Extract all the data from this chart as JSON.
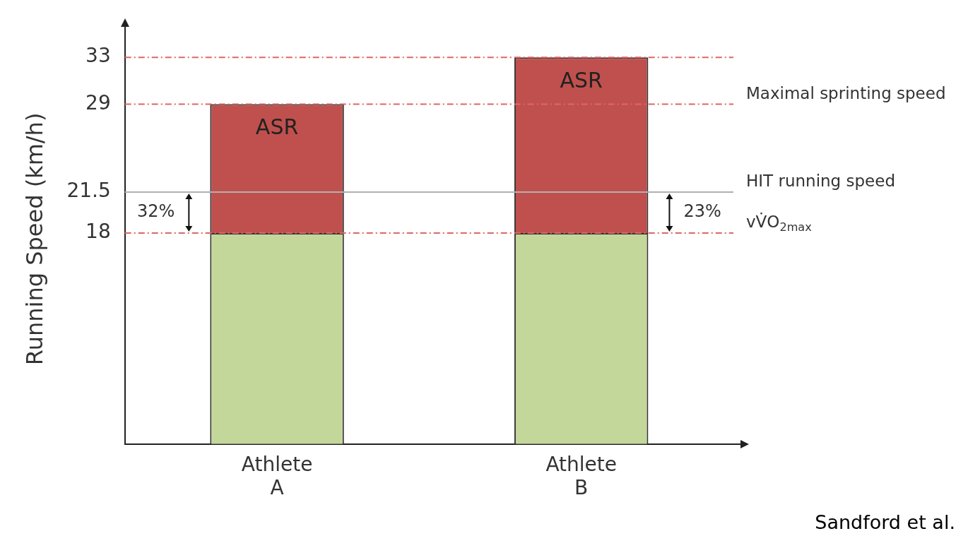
{
  "chart_data": {
    "type": "bar",
    "stacked": true,
    "ylabel": "Running Speed (km/h)",
    "categories": [
      "Athlete A",
      "Athlete B"
    ],
    "series": [
      {
        "color": "#c4d79b",
        "values": [
          18,
          18
        ]
      },
      {
        "name": "ASR",
        "color": "#c0504d",
        "values": [
          11,
          15
        ]
      }
    ],
    "ylim": [
      0,
      35
    ],
    "yticks": [
      18,
      21.5,
      29,
      33
    ],
    "grid": false,
    "legend": false,
    "ref_lines": [
      {
        "axis": "y",
        "value": 33,
        "color": "#e06666",
        "line_style": "dashed"
      },
      {
        "axis": "y",
        "value": 29,
        "label": "Maximal sprinting speed",
        "color": "#e06666",
        "line_style": "dashed"
      },
      {
        "axis": "y",
        "value": 21.5,
        "label": "HIT running speed",
        "color": "#b0b0b0",
        "line_style": "solid"
      },
      {
        "axis": "y",
        "value": 18,
        "label": "vV̇O$_{2max}$",
        "color": "#e06666",
        "line_style": "dashed"
      }
    ],
    "annotations": [
      "32%",
      "23%",
      "Sandford et al."
    ]
  }
}
